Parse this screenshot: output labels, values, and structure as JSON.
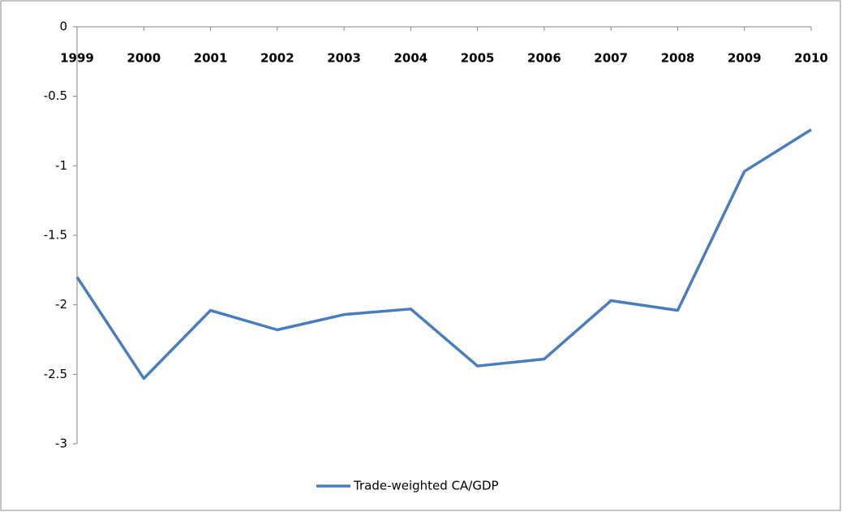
{
  "chart_data": {
    "type": "line",
    "categories": [
      "1999",
      "2000",
      "2001",
      "2002",
      "2003",
      "2004",
      "2005",
      "2006",
      "2007",
      "2008",
      "2009",
      "2010"
    ],
    "series": [
      {
        "name": "Trade-weighted CA/GDP",
        "color": "#4a7ebb",
        "values": [
          -1.8,
          -2.53,
          -2.04,
          -2.18,
          -2.07,
          -2.03,
          -2.44,
          -2.39,
          -1.97,
          -2.04,
          -1.04,
          -0.74
        ]
      }
    ],
    "ylim": [
      -3,
      0
    ],
    "yticks": [
      0,
      -0.5,
      -1,
      -1.5,
      -2,
      -2.5,
      -3
    ],
    "grid": false,
    "legend": "bottom"
  }
}
